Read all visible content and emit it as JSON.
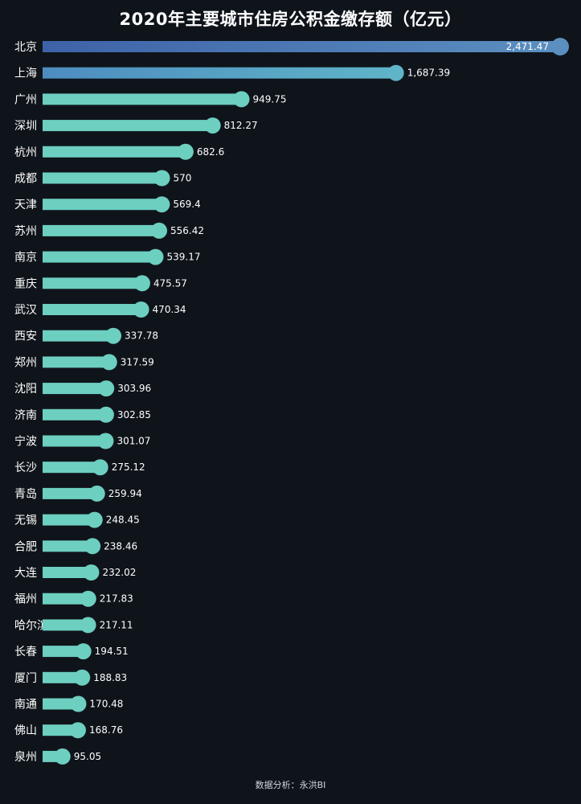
{
  "chart_data": {
    "type": "bar",
    "orientation": "horizontal",
    "title": "2020年主要城市住房公积金缴存额（亿元）",
    "categories": [
      "北京",
      "上海",
      "广州",
      "深圳",
      "杭州",
      "成都",
      "天津",
      "苏州",
      "南京",
      "重庆",
      "武汉",
      "西安",
      "郑州",
      "沈阳",
      "济南",
      "宁波",
      "长沙",
      "青岛",
      "无锡",
      "合肥",
      "大连",
      "福州",
      "哈尔滨",
      "长春",
      "厦门",
      "南通",
      "佛山",
      "泉州"
    ],
    "values": [
      2471.47,
      1687.39,
      949.75,
      812.27,
      682.6,
      570,
      569.4,
      556.42,
      539.17,
      475.57,
      470.34,
      337.78,
      317.59,
      303.96,
      302.85,
      301.07,
      275.12,
      259.94,
      248.45,
      238.46,
      232.02,
      217.83,
      217.11,
      194.51,
      188.83,
      170.48,
      168.76,
      95.05
    ],
    "value_labels": [
      "2,471.47",
      "1,687.39",
      "949.75",
      "812.27",
      "682.6",
      "570",
      "569.4",
      "556.42",
      "539.17",
      "475.57",
      "470.34",
      "337.78",
      "317.59",
      "303.96",
      "302.85",
      "301.07",
      "275.12",
      "259.94",
      "248.45",
      "238.46",
      "232.02",
      "217.83",
      "217.11",
      "194.51",
      "188.83",
      "170.48",
      "168.76",
      "95.05"
    ],
    "xlim": [
      0,
      2471.47
    ],
    "grid": false,
    "legend": "none"
  },
  "source_text": "数据分析：永洪BI",
  "colors": {
    "background": "#0f141b",
    "top_bar_start": "#3e62a8",
    "top_bar_end": "#5b8fc0",
    "second_bar_start": "#4d8cc0",
    "second_bar_end": "#5fb4c8",
    "bar": "#6dcfc0",
    "text": "#ffffff",
    "source_text": "#cfd6df"
  }
}
